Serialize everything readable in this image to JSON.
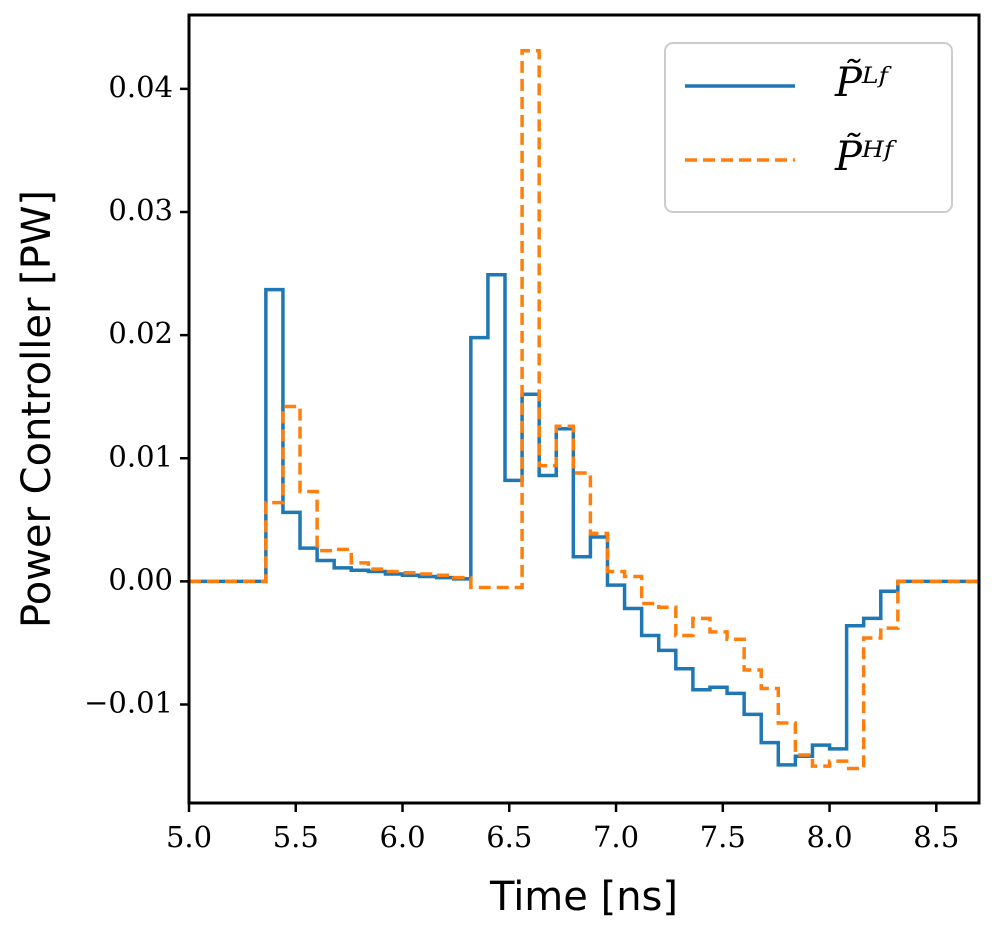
{
  "chart_data": {
    "type": "line",
    "drawstyle": "steps-post",
    "xlabel": "Time [ns]",
    "ylabel": "Power Controller [PW]",
    "x": [
      5,
      5.36,
      5.44,
      5.52,
      5.6,
      5.68,
      5.76,
      5.84,
      5.92,
      6,
      6.08,
      6.16,
      6.24,
      6.32,
      6.4,
      6.48,
      6.56,
      6.64,
      6.72,
      6.8,
      6.88,
      6.96,
      7.04,
      7.12,
      7.2,
      7.28,
      7.36,
      7.44,
      7.52,
      7.6,
      7.68,
      7.76,
      7.84,
      7.92,
      8,
      8.08,
      8.16,
      8.24,
      8.32,
      8.7
    ],
    "series": [
      {
        "name": "P̃ᴸᶠ",
        "color": "#1f77b4",
        "dash": false,
        "values": [
          0,
          0.0237,
          0.0056,
          0.0027,
          0.0017,
          0.0011,
          0.0009,
          0.0008,
          0.0006,
          0.0005,
          0.0004,
          0.0003,
          0.0002,
          0.0198,
          0.0249,
          0.0082,
          0.0152,
          0.0086,
          0.0124,
          0.002,
          0.0036,
          -0.0003,
          -0.0022,
          -0.0044,
          -0.0056,
          -0.0071,
          -0.0088,
          -0.0086,
          -0.0091,
          -0.0108,
          -0.0131,
          -0.0149,
          -0.0142,
          -0.0133,
          -0.0136,
          -0.0036,
          -0.003,
          -0.0008,
          0,
          0
        ]
      },
      {
        "name": "P̃ᴴᶠ",
        "color": "#ff7f0e",
        "dash": true,
        "values": [
          0,
          0.0064,
          0.0142,
          0.0073,
          0.0025,
          0.0026,
          0.0015,
          0.001,
          0.0008,
          0.0007,
          0.0006,
          0.0005,
          0.0003,
          -0.0005,
          -0.0005,
          -0.0005,
          0.0431,
          0.0094,
          0.0126,
          0.0088,
          0.0039,
          0.0008,
          0.0004,
          -0.0018,
          -0.0021,
          -0.0044,
          -0.003,
          -0.0041,
          -0.0047,
          -0.0072,
          -0.0087,
          -0.0115,
          -0.0141,
          -0.015,
          -0.0146,
          -0.0152,
          -0.0046,
          -0.0038,
          0,
          0
        ]
      }
    ],
    "xlim": [
      5,
      8.7
    ],
    "xticks": [
      {
        "value": 5,
        "label": "5.0"
      },
      5.5,
      {
        "value": 6,
        "label": "6.0"
      },
      6.5,
      {
        "value": 7,
        "label": "7.0"
      },
      7.5,
      {
        "value": 8,
        "label": "8.0"
      },
      8.5
    ],
    "ylim": [
      -0.018,
      0.046
    ],
    "yticks": [
      {
        "value": -0.01,
        "label": "−0.01"
      },
      {
        "value": 0,
        "label": "0.00"
      },
      0.01,
      0.02,
      0.03,
      0.04
    ],
    "grid": false,
    "legend": "upper right"
  }
}
